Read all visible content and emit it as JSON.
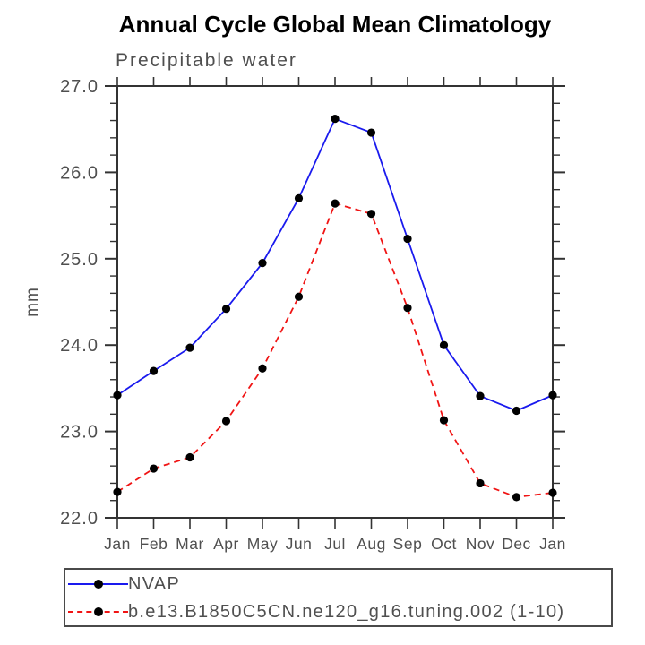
{
  "title": "Annual Cycle Global Mean Climatology",
  "subtitle": "Precipitable water",
  "chart_data": {
    "type": "line",
    "title": "Annual Cycle Global Mean Climatology",
    "subtitle": "Precipitable water",
    "xlabel": "",
    "ylabel": "mm",
    "categories": [
      "Jan",
      "Feb",
      "Mar",
      "Apr",
      "May",
      "Jun",
      "Jul",
      "Aug",
      "Sep",
      "Oct",
      "Nov",
      "Dec",
      "Jan"
    ],
    "ylim": [
      22.0,
      27.0
    ],
    "ytick_major_interval": 1.0,
    "ytick_minor_interval": 0.2,
    "ytick_labels": [
      "22.0",
      "23.0",
      "24.0",
      "25.0",
      "26.0",
      "27.0"
    ],
    "grid": false,
    "legend_position": "below-left",
    "series": [
      {
        "name": "NVAP",
        "color": "#1a1aee",
        "line_style": "solid",
        "marker": "black-dot",
        "values": [
          23.42,
          23.7,
          23.97,
          24.42,
          24.95,
          25.7,
          26.62,
          26.46,
          25.23,
          24.0,
          23.41,
          23.24,
          23.42
        ]
      },
      {
        "name": "b.e13.B1850C5CN.ne120_g16.tuning.002 (1-10)",
        "color": "#f01414",
        "line_style": "dashed",
        "marker": "black-dot",
        "values": [
          22.3,
          22.57,
          22.7,
          23.12,
          23.73,
          24.56,
          25.64,
          25.52,
          24.43,
          23.13,
          22.4,
          22.24,
          22.29
        ]
      }
    ]
  },
  "colors": {
    "axis": "#333333",
    "tick_label": "#4f4f4f",
    "title": "#000000",
    "marker": "#000000",
    "background": "#ffffff"
  }
}
